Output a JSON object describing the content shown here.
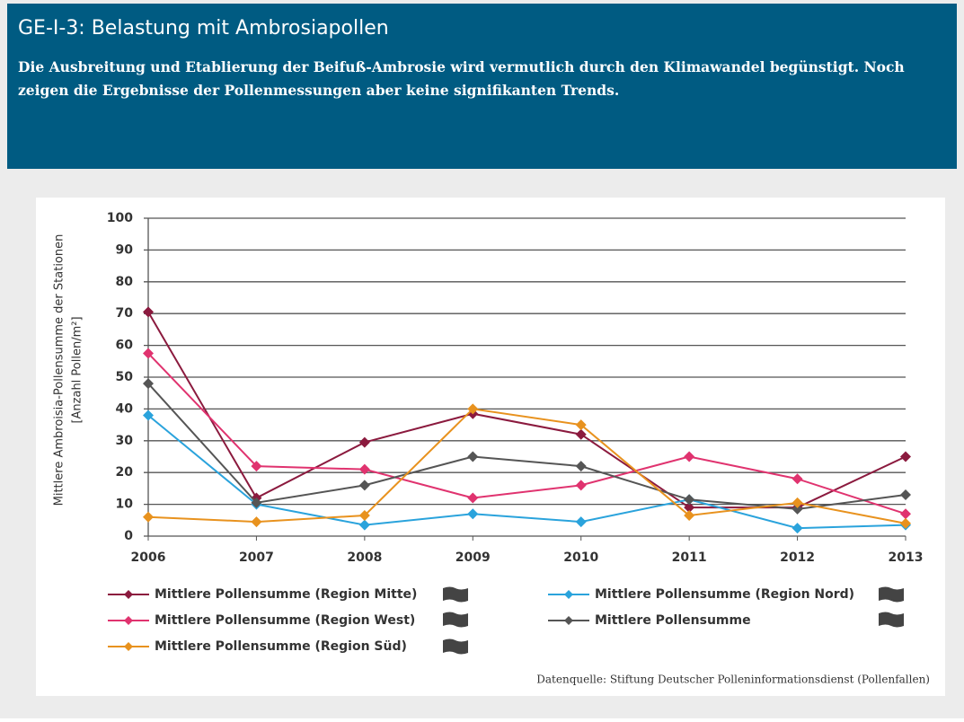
{
  "header": {
    "title": "GE-I-3: Belastung mit Ambrosiapollen",
    "subtitle": [
      "Die Ausbreitung und Etablierung der Beifuß-Ambrosie wird vermutlich durch den Klimawandel begünstigt. Noch",
      "zeigen die Ergebnisse der Pollenmessungen aber keine signifikanten Trends."
    ]
  },
  "chart_data": {
    "type": "line",
    "categories": [
      "2006",
      "2007",
      "2008",
      "2009",
      "2010",
      "2011",
      "2012",
      "2013"
    ],
    "y_label": [
      "Mittlere Ambroisia-Pollensumme der Stationen",
      "[Anzahl Pollen/m²]"
    ],
    "ylim": [
      0,
      100
    ],
    "yticks": [
      0,
      10,
      20,
      30,
      40,
      50,
      60,
      70,
      80,
      90,
      100
    ],
    "grid": true,
    "series": [
      {
        "name": "Mittlere Pollensumme (Region Mitte)",
        "color": "#8b1a3e",
        "values": [
          70.5,
          12,
          29.5,
          38.5,
          32,
          9,
          9,
          25
        ]
      },
      {
        "name": "Mittlere Pollensumme (Region Nord)",
        "color": "#2aa3dc",
        "values": [
          38,
          10,
          3.5,
          7,
          4.5,
          11.5,
          2.5,
          3.5
        ]
      },
      {
        "name": "Mittlere Pollensumme (Region West)",
        "color": "#e0336f",
        "values": [
          57.5,
          22,
          21,
          12,
          16,
          25,
          18,
          7
        ]
      },
      {
        "name": "Mittlere Pollensumme",
        "color": "#555555",
        "values": [
          48,
          10.5,
          16,
          25,
          22,
          11.5,
          8.5,
          13
        ]
      },
      {
        "name": "Mittlere Pollensumme (Region Süd)",
        "color": "#e8921e",
        "values": [
          6,
          4.5,
          6.5,
          40,
          35,
          6.5,
          10.5,
          4
        ]
      }
    ],
    "source": "Datenquelle: Stiftung Deutscher Polleninformationsdienst (Pollenfallen)"
  }
}
